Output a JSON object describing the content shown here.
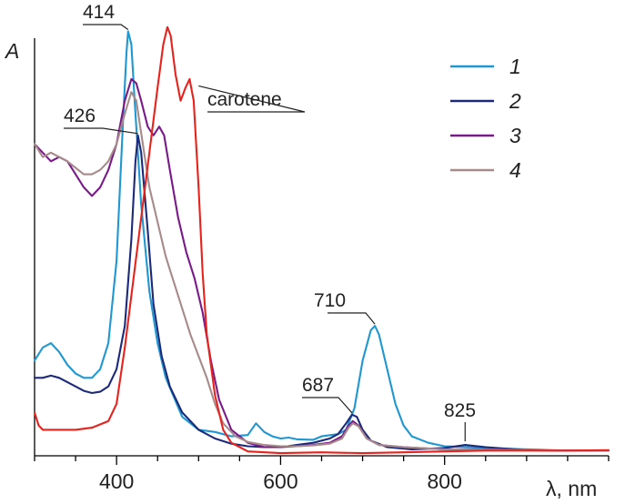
{
  "chart_data": {
    "type": "line",
    "title": "",
    "xlabel": "λ, nm",
    "ylabel": "A",
    "xlim": [
      300,
      1000
    ],
    "ylim": [
      0,
      1.0
    ],
    "xticks": [
      400,
      600,
      800
    ],
    "xtick_labels": [
      "400",
      "600",
      "800"
    ],
    "grid": false,
    "legend_position": "top-right",
    "series": [
      {
        "name": "1",
        "color": "#1f97d0",
        "points": [
          [
            300,
            0.22
          ],
          [
            310,
            0.25
          ],
          [
            320,
            0.26
          ],
          [
            330,
            0.24
          ],
          [
            340,
            0.21
          ],
          [
            350,
            0.19
          ],
          [
            360,
            0.18
          ],
          [
            370,
            0.18
          ],
          [
            380,
            0.2
          ],
          [
            390,
            0.26
          ],
          [
            400,
            0.45
          ],
          [
            408,
            0.78
          ],
          [
            412,
            0.93
          ],
          [
            414,
            0.98
          ],
          [
            418,
            0.95
          ],
          [
            422,
            0.82
          ],
          [
            430,
            0.58
          ],
          [
            440,
            0.38
          ],
          [
            450,
            0.26
          ],
          [
            460,
            0.18
          ],
          [
            480,
            0.09
          ],
          [
            500,
            0.06
          ],
          [
            520,
            0.055
          ],
          [
            540,
            0.045
          ],
          [
            560,
            0.048
          ],
          [
            570,
            0.075
          ],
          [
            580,
            0.055
          ],
          [
            590,
            0.045
          ],
          [
            600,
            0.04
          ],
          [
            610,
            0.042
          ],
          [
            620,
            0.038
          ],
          [
            640,
            0.037
          ],
          [
            650,
            0.045
          ],
          [
            670,
            0.05
          ],
          [
            680,
            0.06
          ],
          [
            690,
            0.11
          ],
          [
            700,
            0.22
          ],
          [
            710,
            0.29
          ],
          [
            715,
            0.3
          ],
          [
            720,
            0.28
          ],
          [
            730,
            0.2
          ],
          [
            740,
            0.12
          ],
          [
            750,
            0.07
          ],
          [
            760,
            0.045
          ],
          [
            780,
            0.03
          ],
          [
            800,
            0.022
          ],
          [
            850,
            0.018
          ],
          [
            900,
            0.015
          ],
          [
            950,
            0.012
          ],
          [
            1000,
            0.012
          ]
        ]
      },
      {
        "name": "2",
        "color": "#1b2a7a",
        "points": [
          [
            300,
            0.18
          ],
          [
            310,
            0.18
          ],
          [
            320,
            0.185
          ],
          [
            330,
            0.18
          ],
          [
            340,
            0.17
          ],
          [
            350,
            0.16
          ],
          [
            360,
            0.15
          ],
          [
            370,
            0.145
          ],
          [
            380,
            0.148
          ],
          [
            390,
            0.16
          ],
          [
            400,
            0.2
          ],
          [
            410,
            0.3
          ],
          [
            418,
            0.5
          ],
          [
            423,
            0.68
          ],
          [
            426,
            0.74
          ],
          [
            430,
            0.7
          ],
          [
            438,
            0.52
          ],
          [
            445,
            0.35
          ],
          [
            455,
            0.23
          ],
          [
            465,
            0.16
          ],
          [
            480,
            0.1
          ],
          [
            500,
            0.06
          ],
          [
            520,
            0.04
          ],
          [
            540,
            0.028
          ],
          [
            560,
            0.022
          ],
          [
            580,
            0.02
          ],
          [
            600,
            0.02
          ],
          [
            620,
            0.025
          ],
          [
            640,
            0.03
          ],
          [
            660,
            0.04
          ],
          [
            670,
            0.05
          ],
          [
            680,
            0.075
          ],
          [
            687,
            0.095
          ],
          [
            693,
            0.09
          ],
          [
            700,
            0.06
          ],
          [
            710,
            0.035
          ],
          [
            730,
            0.02
          ],
          [
            760,
            0.015
          ],
          [
            800,
            0.018
          ],
          [
            825,
            0.025
          ],
          [
            850,
            0.02
          ],
          [
            900,
            0.013
          ],
          [
            950,
            0.012
          ],
          [
            1000,
            0.012
          ]
        ]
      },
      {
        "name": "3",
        "color": "#7a1a8a",
        "points": [
          [
            300,
            0.72
          ],
          [
            310,
            0.7
          ],
          [
            320,
            0.68
          ],
          [
            330,
            0.69
          ],
          [
            340,
            0.68
          ],
          [
            350,
            0.65
          ],
          [
            360,
            0.62
          ],
          [
            370,
            0.6
          ],
          [
            380,
            0.62
          ],
          [
            390,
            0.66
          ],
          [
            400,
            0.72
          ],
          [
            410,
            0.82
          ],
          [
            418,
            0.87
          ],
          [
            424,
            0.86
          ],
          [
            430,
            0.82
          ],
          [
            438,
            0.76
          ],
          [
            445,
            0.74
          ],
          [
            452,
            0.76
          ],
          [
            458,
            0.74
          ],
          [
            465,
            0.66
          ],
          [
            475,
            0.55
          ],
          [
            485,
            0.47
          ],
          [
            495,
            0.41
          ],
          [
            505,
            0.33
          ],
          [
            515,
            0.22
          ],
          [
            525,
            0.13
          ],
          [
            540,
            0.06
          ],
          [
            560,
            0.03
          ],
          [
            580,
            0.02
          ],
          [
            600,
            0.02
          ],
          [
            620,
            0.022
          ],
          [
            640,
            0.025
          ],
          [
            660,
            0.03
          ],
          [
            675,
            0.045
          ],
          [
            683,
            0.07
          ],
          [
            688,
            0.08
          ],
          [
            695,
            0.07
          ],
          [
            705,
            0.04
          ],
          [
            720,
            0.025
          ],
          [
            750,
            0.02
          ],
          [
            800,
            0.015
          ],
          [
            850,
            0.015
          ],
          [
            900,
            0.013
          ],
          [
            950,
            0.012
          ],
          [
            1000,
            0.012
          ]
        ]
      },
      {
        "name": "4",
        "color": "#a88a8a",
        "points": [
          [
            300,
            0.72
          ],
          [
            310,
            0.69
          ],
          [
            320,
            0.7
          ],
          [
            330,
            0.69
          ],
          [
            340,
            0.68
          ],
          [
            350,
            0.665
          ],
          [
            360,
            0.65
          ],
          [
            370,
            0.65
          ],
          [
            380,
            0.66
          ],
          [
            390,
            0.68
          ],
          [
            400,
            0.72
          ],
          [
            410,
            0.79
          ],
          [
            418,
            0.84
          ],
          [
            424,
            0.82
          ],
          [
            432,
            0.72
          ],
          [
            440,
            0.62
          ],
          [
            450,
            0.54
          ],
          [
            460,
            0.46
          ],
          [
            470,
            0.4
          ],
          [
            480,
            0.34
          ],
          [
            490,
            0.28
          ],
          [
            500,
            0.23
          ],
          [
            510,
            0.18
          ],
          [
            520,
            0.12
          ],
          [
            530,
            0.075
          ],
          [
            545,
            0.045
          ],
          [
            560,
            0.032
          ],
          [
            580,
            0.025
          ],
          [
            600,
            0.022
          ],
          [
            620,
            0.022
          ],
          [
            640,
            0.024
          ],
          [
            660,
            0.028
          ],
          [
            675,
            0.04
          ],
          [
            683,
            0.065
          ],
          [
            688,
            0.075
          ],
          [
            695,
            0.068
          ],
          [
            705,
            0.04
          ],
          [
            720,
            0.025
          ],
          [
            750,
            0.02
          ],
          [
            800,
            0.015
          ],
          [
            850,
            0.014
          ],
          [
            900,
            0.013
          ],
          [
            950,
            0.012
          ],
          [
            1000,
            0.012
          ]
        ]
      },
      {
        "name": "carotene",
        "color": "#e8221c",
        "points": [
          [
            300,
            0.1
          ],
          [
            305,
            0.07
          ],
          [
            310,
            0.06
          ],
          [
            330,
            0.06
          ],
          [
            350,
            0.06
          ],
          [
            370,
            0.065
          ],
          [
            390,
            0.08
          ],
          [
            400,
            0.12
          ],
          [
            410,
            0.25
          ],
          [
            420,
            0.4
          ],
          [
            430,
            0.55
          ],
          [
            440,
            0.7
          ],
          [
            450,
            0.85
          ],
          [
            457,
            0.95
          ],
          [
            462,
            0.99
          ],
          [
            466,
            0.97
          ],
          [
            472,
            0.88
          ],
          [
            478,
            0.82
          ],
          [
            484,
            0.85
          ],
          [
            489,
            0.87
          ],
          [
            494,
            0.82
          ],
          [
            500,
            0.62
          ],
          [
            505,
            0.42
          ],
          [
            510,
            0.28
          ],
          [
            520,
            0.14
          ],
          [
            530,
            0.06
          ],
          [
            540,
            0.03
          ],
          [
            560,
            0.01
          ],
          [
            600,
            0.006
          ],
          [
            650,
            0.008
          ],
          [
            700,
            0.006
          ],
          [
            750,
            0.008
          ],
          [
            800,
            0.01
          ],
          [
            850,
            0.012
          ],
          [
            900,
            0.012
          ],
          [
            950,
            0.012
          ],
          [
            1000,
            0.013
          ]
        ]
      }
    ],
    "annotations": [
      {
        "text": "414",
        "x": 414,
        "y": 0.98
      },
      {
        "text": "426",
        "x": 426,
        "y": 0.74
      },
      {
        "text": "carotene",
        "x": 500,
        "y": 0.85
      },
      {
        "text": "710",
        "x": 715,
        "y": 0.3
      },
      {
        "text": "687",
        "x": 687,
        "y": 0.095
      },
      {
        "text": "825",
        "x": 825,
        "y": 0.025
      }
    ]
  }
}
